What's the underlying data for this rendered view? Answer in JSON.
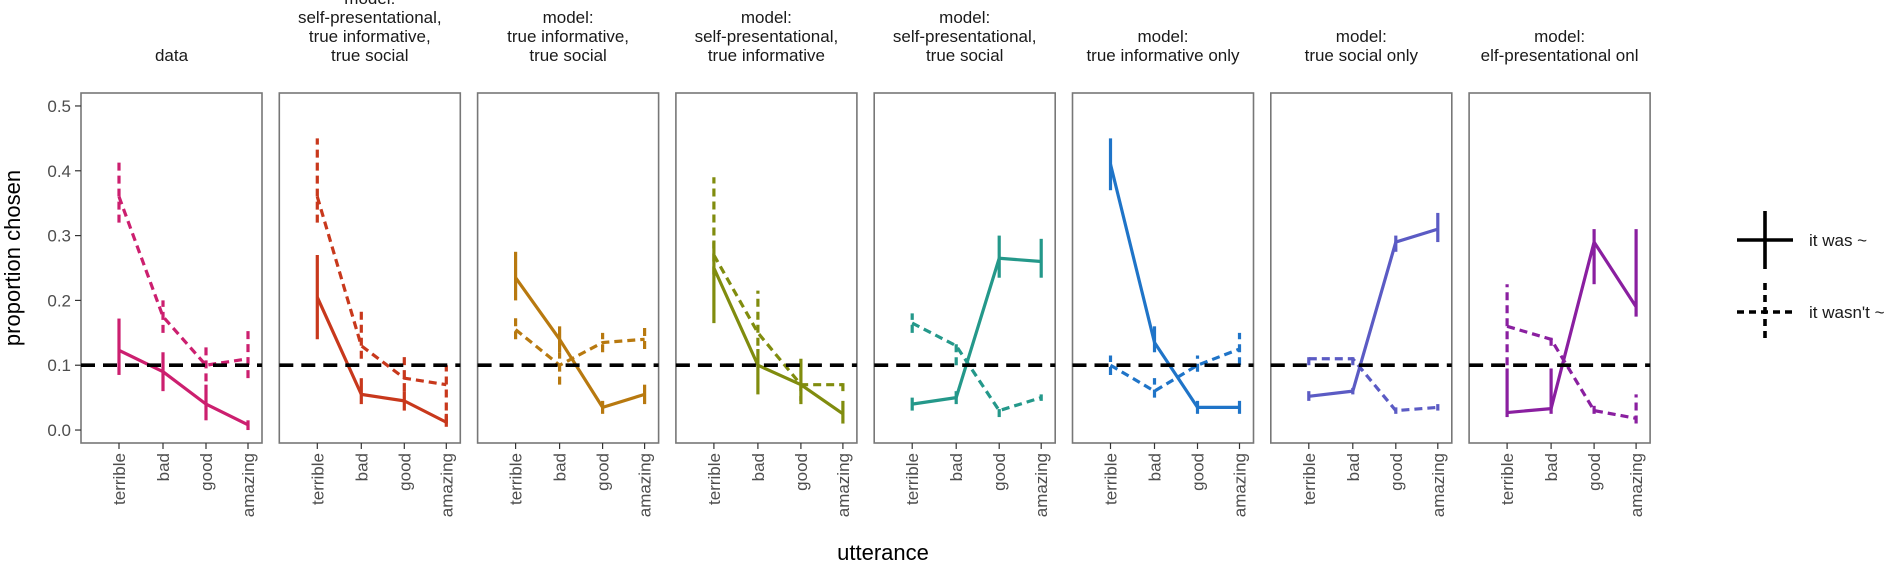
{
  "chart_data": {
    "type": "line",
    "categories": [
      "terrible",
      "bad",
      "good",
      "amazing"
    ],
    "xlabel": "utterance",
    "ylabel": "proportion chosen",
    "ylim": [
      -0.02,
      0.52
    ],
    "yticks": [
      0.0,
      0.1,
      0.2,
      0.3,
      0.4,
      0.5
    ],
    "ytick_labels": [
      "0.0",
      "0.1",
      "0.2",
      "0.3",
      "0.4",
      "0.5"
    ],
    "reference_line": 0.1,
    "legend": {
      "position": "right",
      "entries": [
        {
          "name": "it was ~",
          "linestyle": "solid"
        },
        {
          "name": "it wasn't ~",
          "linestyle": "dashed"
        }
      ]
    },
    "panels": [
      {
        "title_lines": [
          "data"
        ],
        "color": "#cc1f6f",
        "series": [
          {
            "name": "it was ~",
            "values": [
              0.123,
              0.09,
              0.04,
              0.008
            ],
            "err_low": [
              0.085,
              0.06,
              0.015,
              0.0
            ],
            "err_high": [
              0.172,
              0.12,
              0.07,
              0.015
            ]
          },
          {
            "name": "it wasn't ~",
            "values": [
              0.36,
              0.175,
              0.1,
              0.11
            ],
            "err_low": [
              0.32,
              0.15,
              0.075,
              0.08
            ],
            "err_high": [
              0.42,
              0.2,
              0.13,
              0.16
            ]
          }
        ]
      },
      {
        "title_lines": [
          "model:",
          "self-presentational,",
          "true informative,",
          "true social"
        ],
        "color": "#c8381c",
        "series": [
          {
            "name": "it was ~",
            "values": [
              0.205,
              0.055,
              0.045,
              0.012
            ],
            "err_low": [
              0.14,
              0.04,
              0.03,
              0.005
            ],
            "err_high": [
              0.27,
              0.08,
              0.06,
              0.025
            ]
          },
          {
            "name": "it wasn't ~",
            "values": [
              0.36,
              0.13,
              0.08,
              0.07
            ],
            "err_low": [
              0.32,
              0.11,
              0.06,
              0.01
            ],
            "err_high": [
              0.45,
              0.19,
              0.115,
              0.1
            ]
          }
        ]
      },
      {
        "title_lines": [
          "model:",
          "true informative,",
          "true social"
        ],
        "color": "#b8790f",
        "series": [
          {
            "name": "it was ~",
            "values": [
              0.235,
              0.14,
              0.035,
              0.055
            ],
            "err_low": [
              0.2,
              0.12,
              0.025,
              0.04
            ],
            "err_high": [
              0.275,
              0.16,
              0.045,
              0.07
            ]
          },
          {
            "name": "it wasn't ~",
            "values": [
              0.155,
              0.1,
              0.135,
              0.14
            ],
            "err_low": [
              0.14,
              0.07,
              0.12,
              0.125
            ],
            "err_high": [
              0.175,
              0.12,
              0.15,
              0.16
            ]
          }
        ]
      },
      {
        "title_lines": [
          "model:",
          "self-presentational,",
          "true informative"
        ],
        "color": "#808c0e",
        "series": [
          {
            "name": "it was ~",
            "values": [
              0.25,
              0.1,
              0.07,
              0.025
            ],
            "err_low": [
              0.165,
              0.055,
              0.045,
              0.01
            ],
            "err_high": [
              0.29,
              0.125,
              0.11,
              0.045
            ]
          },
          {
            "name": "it wasn't ~",
            "values": [
              0.27,
              0.15,
              0.07,
              0.07
            ],
            "err_low": [
              0.24,
              0.13,
              0.04,
              0.06
            ],
            "err_high": [
              0.39,
              0.215,
              0.08,
              0.08
            ]
          }
        ]
      },
      {
        "title_lines": [
          "model:",
          "self-presentational,",
          "true social"
        ],
        "color": "#24988a",
        "series": [
          {
            "name": "it was ~",
            "values": [
              0.04,
              0.05,
              0.265,
              0.26
            ],
            "err_low": [
              0.03,
              0.04,
              0.235,
              0.235
            ],
            "err_high": [
              0.05,
              0.06,
              0.3,
              0.295
            ]
          },
          {
            "name": "it wasn't ~",
            "values": [
              0.165,
              0.13,
              0.03,
              0.05
            ],
            "err_low": [
              0.15,
              0.1,
              0.02,
              0.045
            ],
            "err_high": [
              0.18,
              0.14,
              0.04,
              0.055
            ]
          }
        ]
      },
      {
        "title_lines": [
          "model:",
          "true informative only"
        ],
        "color": "#1f74c8",
        "series": [
          {
            "name": "it was ~",
            "values": [
              0.41,
              0.135,
              0.035,
              0.035
            ],
            "err_low": [
              0.37,
              0.12,
              0.025,
              0.025
            ],
            "err_high": [
              0.45,
              0.16,
              0.045,
              0.045
            ]
          },
          {
            "name": "it wasn't ~",
            "values": [
              0.1,
              0.06,
              0.1,
              0.125
            ],
            "err_low": [
              0.085,
              0.05,
              0.09,
              0.1
            ],
            "err_high": [
              0.115,
              0.08,
              0.115,
              0.15
            ]
          }
        ]
      },
      {
        "title_lines": [
          "model:",
          "true social only"
        ],
        "color": "#5b5bc4",
        "series": [
          {
            "name": "it was ~",
            "values": [
              0.052,
              0.06,
              0.29,
              0.31
            ],
            "err_low": [
              0.045,
              0.055,
              0.275,
              0.29
            ],
            "err_high": [
              0.06,
              0.065,
              0.3,
              0.335
            ]
          },
          {
            "name": "it wasn't ~",
            "values": [
              0.11,
              0.11,
              0.03,
              0.035
            ],
            "err_low": [
              0.1,
              0.1,
              0.025,
              0.03
            ],
            "err_high": [
              0.12,
              0.12,
              0.035,
              0.04
            ]
          }
        ]
      },
      {
        "title_lines": [
          "model:",
          "elf-presentational onl"
        ],
        "color": "#8a1fa0",
        "series": [
          {
            "name": "it was ~",
            "values": [
              0.027,
              0.033,
              0.29,
              0.19
            ],
            "err_low": [
              0.02,
              0.025,
              0.225,
              0.175
            ],
            "err_high": [
              0.095,
              0.095,
              0.31,
              0.31
            ]
          },
          {
            "name": "it wasn't ~",
            "values": [
              0.16,
              0.14,
              0.03,
              0.018
            ],
            "err_low": [
              0.1,
              0.13,
              0.025,
              0.01
            ],
            "err_high": [
              0.225,
              0.15,
              0.04,
              0.055
            ]
          }
        ]
      }
    ]
  }
}
